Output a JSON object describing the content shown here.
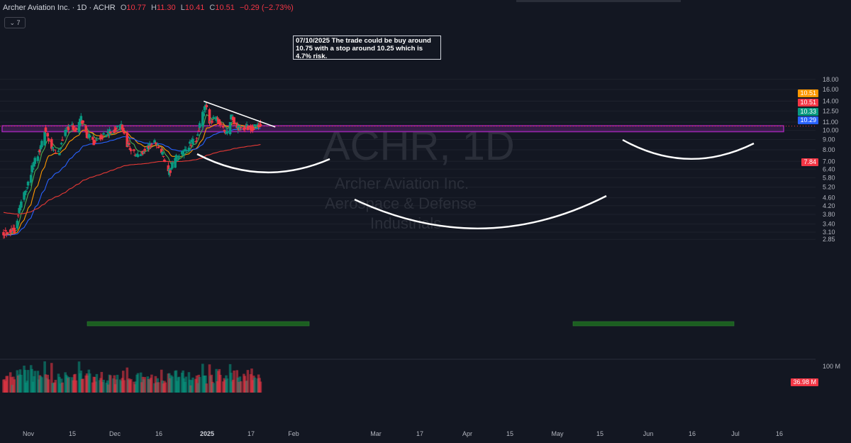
{
  "header": {
    "symbol": "Archer Aviation Inc. · 1D · ACHR",
    "open_label": "O",
    "open": "10.77",
    "high_label": "H",
    "high": "11.30",
    "low_label": "L",
    "low": "10.41",
    "close_label": "C",
    "close": "10.51",
    "change": "−0.29 (−2.73%)",
    "indicator_count": "7"
  },
  "annotation": "07/10/2025 The trade could be buy around 10.75 with a stop around 10.25 which is 4.7% risk.",
  "watermark": {
    "symbol": "ACHR, 1D",
    "name": "Archer Aviation Inc.",
    "sector": "Aerospace & Defense",
    "industry": "Industrials"
  },
  "price_tags": [
    {
      "value": "10.51",
      "color": "#ff9800"
    },
    {
      "value": "10.51",
      "color": "#f23645"
    },
    {
      "value": "10.33",
      "color": "#089981"
    },
    {
      "value": "10.29",
      "color": "#2962ff"
    },
    {
      "value": "7.84",
      "color": "#f23645"
    }
  ],
  "volume_tag": {
    "value": "36.98 M",
    "color": "#f23645"
  },
  "colors": {
    "up": "#089981",
    "down": "#f23645",
    "ema_fast": "#4caf50",
    "ema_mid": "#ff9800",
    "ema_slow": "#2962ff",
    "sma_long": "#e53935",
    "zone": "#9c27b0",
    "background": "#131722"
  },
  "chart_data": {
    "type": "candlestick",
    "start_date": "2024-10-21",
    "end_date": "2025-07-10",
    "y_scale": "log",
    "ylim": [
      2.6,
      18.0
    ],
    "y_ticks": [
      "18.00",
      "16.00",
      "14.00",
      "12.50",
      "11.00",
      "10.00",
      "9.00",
      "8.00",
      "7.00",
      "6.40",
      "5.80",
      "5.20",
      "4.60",
      "4.20",
      "3.80",
      "3.40",
      "3.10",
      "2.85"
    ],
    "x_ticks": [
      "Nov",
      "15",
      "Dec",
      "16",
      "2025",
      "17",
      "Feb",
      "Mar",
      "17",
      "Apr",
      "15",
      "May",
      "15",
      "Jun",
      "16",
      "Jul",
      "16"
    ],
    "volume_axis_label": "100 M",
    "resistance_zone": [
      9.85,
      10.55
    ],
    "trendline": [
      {
        "date": "2025-05-13",
        "price": 14.0
      },
      {
        "date": "2025-07-25",
        "price": 10.4
      }
    ],
    "anchors": [
      {
        "date": "2024-10-21",
        "close": 3.1
      },
      {
        "date": "2024-11-01",
        "close": 3.2
      },
      {
        "date": "2024-11-08",
        "close": 4.4
      },
      {
        "date": "2024-11-15",
        "close": 5.5
      },
      {
        "date": "2024-11-22",
        "close": 7.2
      },
      {
        "date": "2024-11-29",
        "close": 8.5
      },
      {
        "date": "2024-12-02",
        "close": 10.2
      },
      {
        "date": "2024-12-09",
        "close": 8.0
      },
      {
        "date": "2024-12-16",
        "close": 7.6
      },
      {
        "date": "2024-12-20",
        "close": 9.2
      },
      {
        "date": "2024-12-27",
        "close": 10.7
      },
      {
        "date": "2025-01-03",
        "close": 10.0
      },
      {
        "date": "2025-01-08",
        "close": 11.4
      },
      {
        "date": "2025-01-14",
        "close": 9.5
      },
      {
        "date": "2025-01-21",
        "close": 8.8
      },
      {
        "date": "2025-01-28",
        "close": 9.4
      },
      {
        "date": "2025-02-06",
        "close": 9.7
      },
      {
        "date": "2025-02-18",
        "close": 10.6
      },
      {
        "date": "2025-02-24",
        "close": 8.6
      },
      {
        "date": "2025-03-05",
        "close": 7.4
      },
      {
        "date": "2025-03-12",
        "close": 7.8
      },
      {
        "date": "2025-03-19",
        "close": 8.4
      },
      {
        "date": "2025-03-25",
        "close": 8.8
      },
      {
        "date": "2025-04-01",
        "close": 7.6
      },
      {
        "date": "2025-04-07",
        "close": 6.0
      },
      {
        "date": "2025-04-14",
        "close": 7.2
      },
      {
        "date": "2025-04-21",
        "close": 7.6
      },
      {
        "date": "2025-04-28",
        "close": 8.4
      },
      {
        "date": "2025-05-05",
        "close": 9.0
      },
      {
        "date": "2025-05-12",
        "close": 12.0
      },
      {
        "date": "2025-05-15",
        "close": 13.1
      },
      {
        "date": "2025-05-19",
        "close": 11.2
      },
      {
        "date": "2025-05-27",
        "close": 11.3
      },
      {
        "date": "2025-06-02",
        "close": 10.0
      },
      {
        "date": "2025-06-06",
        "close": 9.7
      },
      {
        "date": "2025-06-10",
        "close": 12.0
      },
      {
        "date": "2025-06-16",
        "close": 10.2
      },
      {
        "date": "2025-06-24",
        "close": 10.4
      },
      {
        "date": "2025-07-02",
        "close": 10.3
      },
      {
        "date": "2025-07-10",
        "close": 10.51
      }
    ],
    "emas": [
      8,
      21,
      50,
      200
    ],
    "last_bar": {
      "date": "2025-07-10",
      "open": 10.77,
      "high": 11.3,
      "low": 10.41,
      "close": 10.51,
      "volume_m": 36.98
    }
  }
}
